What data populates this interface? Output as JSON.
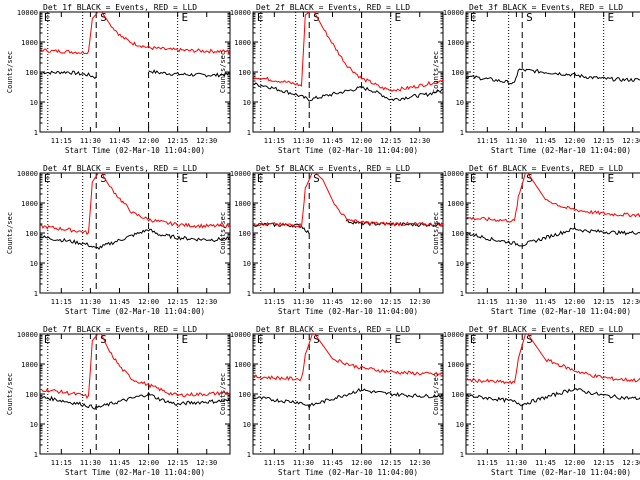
{
  "chart_data": {
    "type": "line",
    "scale_y": "log",
    "ylim": [
      1,
      10000
    ],
    "xlim": [
      "11:04",
      "12:42"
    ],
    "ylabel": "Counts/sec",
    "xlabel": "Start Time (02-Mar-10 11:04:00)",
    "x_ticks": [
      "11:15",
      "11:30",
      "11:45",
      "12:00",
      "12:15",
      "12:30"
    ],
    "y_ticks": [
      "1",
      "10",
      "100",
      "1000",
      "10000"
    ],
    "dotted_lines_at": [
      "11:08",
      "11:26",
      "12:15"
    ],
    "dashed_lines_at": [
      "11:33",
      "12:00"
    ],
    "marker_labels": [
      {
        "text": "E",
        "x": "11:06"
      },
      {
        "text": "S",
        "x": "11:35"
      },
      {
        "text": "E",
        "x": "12:17"
      }
    ],
    "colors": {
      "events": "#000000",
      "lld": "#ff0000"
    },
    "panels": [
      {
        "title": "Det 1f BLACK = Events, RED = LLD",
        "series": [
          {
            "name": "Events",
            "x": [
              "11:04",
              "11:10",
              "11:18",
              "11:26",
              "11:29",
              "11:33",
              "11:37",
              "11:45",
              "12:00",
              "12:05",
              "12:15",
              "12:25",
              "12:34",
              "12:42"
            ],
            "values": [
              100,
              95,
              100,
              85,
              80,
              65,
              null,
              null,
              110,
              95,
              85,
              80,
              78,
              85
            ]
          },
          {
            "name": "LLD",
            "x": [
              "11:04",
              "11:10",
              "11:18",
              "11:26",
              "11:29",
              "11:31",
              "11:35",
              "11:40",
              "11:46",
              "11:52",
              "12:00",
              "12:10",
              "12:20",
              "12:30",
              "12:42"
            ],
            "values": [
              550,
              500,
              480,
              450,
              470,
              6000,
              12000,
              4000,
              1500,
              900,
              650,
              560,
              520,
              500,
              480
            ]
          }
        ]
      },
      {
        "title": "Det 2f BLACK = Events, RED = LLD",
        "series": [
          {
            "name": "Events",
            "x": [
              "11:04",
              "11:10",
              "11:18",
              "11:26",
              "11:29",
              "11:33",
              "12:00",
              "12:05",
              "12:10",
              "12:15",
              "12:20",
              "12:25",
              "12:34",
              "12:42"
            ],
            "values": [
              40,
              35,
              25,
              18,
              15,
              12,
              30,
              25,
              18,
              12,
              13,
              15,
              18,
              25
            ]
          },
          {
            "name": "LLD",
            "x": [
              "11:04",
              "11:10",
              "11:18",
              "11:26",
              "11:29",
              "11:31",
              "11:35",
              "11:40",
              "11:46",
              "11:52",
              "12:00",
              "12:05",
              "12:10",
              "12:15",
              "12:20",
              "12:25",
              "12:34",
              "12:42"
            ],
            "values": [
              70,
              60,
              50,
              40,
              35,
              8000,
              12000,
              3000,
              700,
              180,
              60,
              45,
              30,
              25,
              27,
              30,
              40,
              55
            ]
          }
        ]
      },
      {
        "title": "Det 3f BLACK = Events, RED = LLD",
        "series": [
          {
            "name": "Events",
            "x": [
              "11:04",
              "11:10",
              "11:18",
              "11:26",
              "11:29",
              "11:31",
              "12:00",
              "12:05",
              "12:15",
              "12:25",
              "12:34",
              "12:42"
            ],
            "values": [
              70,
              65,
              55,
              45,
              40,
              120,
              80,
              70,
              60,
              55,
              55,
              60
            ]
          }
        ]
      },
      {
        "title": "Det 4f BLACK = Events, RED = LLD",
        "series": [
          {
            "name": "Events",
            "x": [
              "11:04",
              "11:10",
              "11:18",
              "11:26",
              "11:29",
              "11:33",
              "12:00",
              "12:05",
              "12:15",
              "12:25",
              "12:34",
              "12:42"
            ],
            "values": [
              75,
              65,
              55,
              45,
              40,
              30,
              130,
              90,
              70,
              62,
              60,
              65
            ]
          },
          {
            "name": "LLD",
            "x": [
              "11:04",
              "11:10",
              "11:18",
              "11:26",
              "11:29",
              "11:31",
              "11:35",
              "11:40",
              "11:46",
              "11:52",
              "12:00",
              "12:10",
              "12:20",
              "12:30",
              "12:42"
            ],
            "values": [
              170,
              150,
              130,
              110,
              100,
              5000,
              12000,
              3500,
              1200,
              450,
              280,
              210,
              180,
              170,
              175
            ]
          }
        ]
      },
      {
        "title": "Det 5f BLACK = Events, RED = LLD",
        "series": [
          {
            "name": "Events",
            "x": [
              "11:04",
              "11:10",
              "11:18",
              "11:26",
              "11:29",
              "11:33",
              "11:37",
              "11:44",
              "11:52",
              "12:00",
              "12:10",
              "12:20",
              "12:30",
              "12:42"
            ],
            "values": [
              190,
              190,
              185,
              180,
              170,
              100,
              null,
              null,
              250,
              210,
              200,
              195,
              190,
              190
            ]
          },
          {
            "name": "LLD",
            "x": [
              "11:04",
              "11:10",
              "11:18",
              "11:26",
              "11:29",
              "11:31",
              "11:35",
              "11:40",
              "11:46",
              "11:52",
              "12:00",
              "12:10",
              "12:20",
              "12:30",
              "12:42"
            ],
            "values": [
              200,
              195,
              190,
              185,
              180,
              3000,
              12000,
              6000,
              900,
              300,
              220,
              205,
              200,
              195,
              195
            ]
          }
        ]
      },
      {
        "title": "Det 6f BLACK = Events, RED = LLD",
        "series": [
          {
            "name": "Events",
            "x": [
              "11:04",
              "11:10",
              "11:18",
              "11:26",
              "11:29",
              "11:33",
              "12:00",
              "12:05",
              "12:15",
              "12:25",
              "12:34",
              "12:42"
            ],
            "values": [
              100,
              80,
              60,
              50,
              45,
              40,
              140,
              120,
              110,
              100,
              105,
              110
            ]
          },
          {
            "name": "LLD",
            "x": [
              "11:04",
              "11:10",
              "11:18",
              "11:26",
              "11:29",
              "11:31",
              "11:35",
              "11:45",
              "11:55",
              "12:00",
              "12:10",
              "12:20",
              "12:30",
              "12:42"
            ],
            "values": [
              320,
              300,
              280,
              260,
              250,
              1500,
              12000,
              1300,
              700,
              600,
              480,
              420,
              400,
              400
            ]
          }
        ]
      },
      {
        "title": "Det 7f BLACK = Events, RED = LLD",
        "series": [
          {
            "name": "Events",
            "x": [
              "11:04",
              "11:10",
              "11:18",
              "11:26",
              "11:29",
              "11:33",
              "12:00",
              "12:05",
              "12:10",
              "12:15",
              "12:20",
              "12:30",
              "12:42"
            ],
            "values": [
              80,
              70,
              55,
              45,
              40,
              35,
              100,
              70,
              55,
              45,
              50,
              55,
              60
            ]
          },
          {
            "name": "LLD",
            "x": [
              "11:04",
              "11:10",
              "11:18",
              "11:26",
              "11:29",
              "11:31",
              "11:35",
              "11:40",
              "11:46",
              "11:52",
              "12:00",
              "12:05",
              "12:10",
              "12:15",
              "12:20",
              "12:30",
              "12:42"
            ],
            "values": [
              140,
              130,
              110,
              90,
              80,
              6000,
              12000,
              2500,
              700,
              300,
              200,
              150,
              110,
              90,
              95,
              100,
              110
            ]
          }
        ]
      },
      {
        "title": "Det 8f BLACK = Events, RED = LLD",
        "series": [
          {
            "name": "Events",
            "x": [
              "11:04",
              "11:10",
              "11:18",
              "11:26",
              "11:29",
              "11:33",
              "12:00",
              "12:05",
              "12:15",
              "12:25",
              "12:34",
              "12:42"
            ],
            "values": [
              75,
              70,
              60,
              55,
              50,
              40,
              140,
              120,
              100,
              90,
              85,
              90
            ]
          },
          {
            "name": "LLD",
            "x": [
              "11:04",
              "11:10",
              "11:18",
              "11:26",
              "11:29",
              "11:31",
              "11:35",
              "11:45",
              "11:55",
              "12:00",
              "12:10",
              "12:20",
              "12:30",
              "12:42"
            ],
            "values": [
              380,
              360,
              340,
              320,
              310,
              2000,
              12000,
              1500,
              900,
              750,
              600,
              520,
              480,
              450
            ]
          }
        ]
      },
      {
        "title": "Det 9f BLACK = Events, RED = LLD",
        "series": [
          {
            "name": "Events",
            "x": [
              "11:04",
              "11:10",
              "11:18",
              "11:26",
              "11:29",
              "11:33",
              "12:00",
              "12:05",
              "12:15",
              "12:25",
              "12:34",
              "12:42"
            ],
            "values": [
              90,
              80,
              70,
              60,
              55,
              45,
              150,
              120,
              90,
              75,
              70,
              75
            ]
          },
          {
            "name": "LLD",
            "x": [
              "11:04",
              "11:10",
              "11:18",
              "11:26",
              "11:29",
              "11:31",
              "11:35",
              "11:45",
              "11:55",
              "12:00",
              "12:10",
              "12:20",
              "12:30",
              "12:42"
            ],
            "values": [
              300,
              280,
              260,
              240,
              230,
              1500,
              12000,
              1400,
              800,
              600,
              400,
              320,
              290,
              280
            ]
          }
        ]
      }
    ]
  }
}
